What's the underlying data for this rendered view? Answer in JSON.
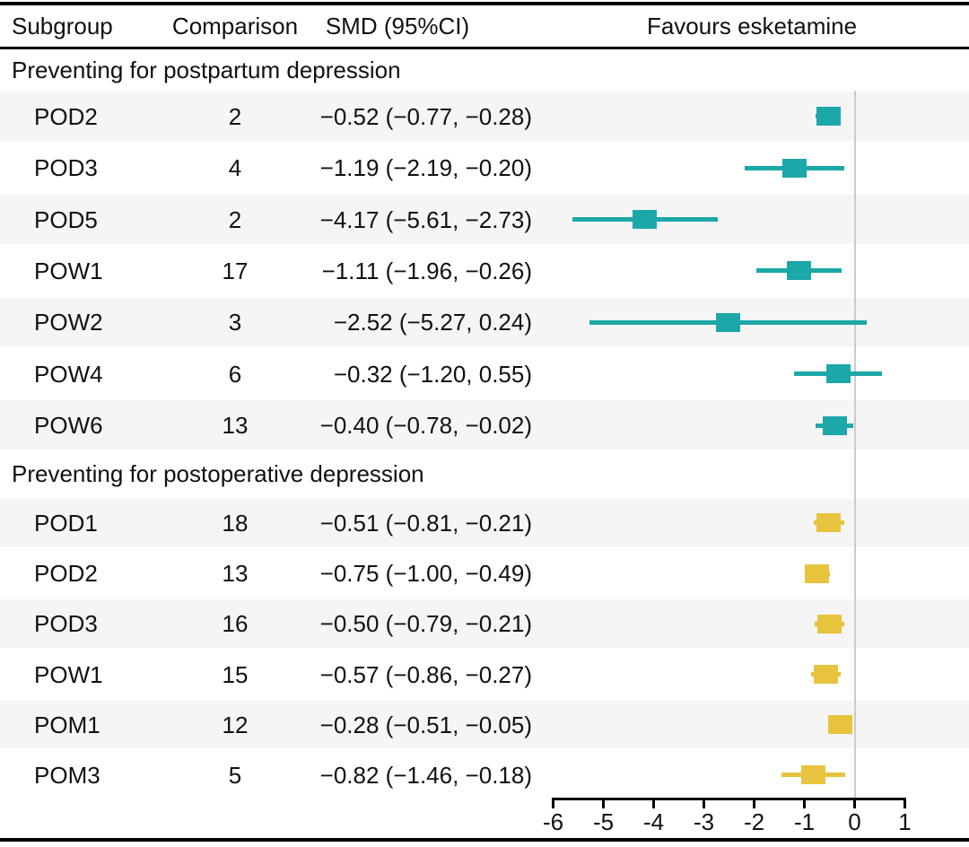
{
  "header": {
    "subgroup": "Subgroup",
    "comparison": "Comparison",
    "smd": "SMD (95%CI)",
    "favours": "Favours esketamine"
  },
  "colors": {
    "postpartum_marker": "#1CA7A8",
    "postoperative_marker": "#E8C33D",
    "row_stripe": "#F5F5F5",
    "reference_line": "#CBCBCB",
    "rule": "#000000",
    "text": "#111111"
  },
  "sections": [
    {
      "title": "Preventing for postpartum depression",
      "color": "#1CA7A8",
      "rows": [
        {
          "subgroup": "POD2",
          "comparison": "2",
          "smd_text": "−0.52 (−0.77, −0.28)",
          "est": -0.52,
          "lo": -0.77,
          "hi": -0.28
        },
        {
          "subgroup": "POD3",
          "comparison": "4",
          "smd_text": "−1.19 (−2.19, −0.20)",
          "est": -1.19,
          "lo": -2.19,
          "hi": -0.2
        },
        {
          "subgroup": "POD5",
          "comparison": "2",
          "smd_text": "−4.17 (−5.61, −2.73)",
          "est": -4.17,
          "lo": -5.61,
          "hi": -2.73
        },
        {
          "subgroup": "POW1",
          "comparison": "17",
          "smd_text": "−1.11 (−1.96, −0.26)",
          "est": -1.11,
          "lo": -1.96,
          "hi": -0.26
        },
        {
          "subgroup": "POW2",
          "comparison": "3",
          "smd_text": "−2.52 (−5.27, 0.24)",
          "est": -2.52,
          "lo": -5.27,
          "hi": 0.24
        },
        {
          "subgroup": "POW4",
          "comparison": "6",
          "smd_text": "−0.32 (−1.20, 0.55)",
          "est": -0.32,
          "lo": -1.2,
          "hi": 0.55
        },
        {
          "subgroup": "POW6",
          "comparison": "13",
          "smd_text": "−0.40 (−0.78, −0.02)",
          "est": -0.4,
          "lo": -0.78,
          "hi": -0.02
        }
      ]
    },
    {
      "title": "Preventing for postoperative depression",
      "color": "#E8C33D",
      "rows": [
        {
          "subgroup": "POD1",
          "comparison": "18",
          "smd_text": "−0.51 (−0.81, −0.21)",
          "est": -0.51,
          "lo": -0.81,
          "hi": -0.21
        },
        {
          "subgroup": "POD2",
          "comparison": "13",
          "smd_text": "−0.75 (−1.00, −0.49)",
          "est": -0.75,
          "lo": -1.0,
          "hi": -0.49
        },
        {
          "subgroup": "POD3",
          "comparison": "16",
          "smd_text": "−0.50 (−0.79, −0.21)",
          "est": -0.5,
          "lo": -0.79,
          "hi": -0.21
        },
        {
          "subgroup": "POW1",
          "comparison": "15",
          "smd_text": "−0.57 (−0.86, −0.27)",
          "est": -0.57,
          "lo": -0.86,
          "hi": -0.27
        },
        {
          "subgroup": "POM1",
          "comparison": "12",
          "smd_text": "−0.28 (−0.51, −0.05)",
          "est": -0.28,
          "lo": -0.51,
          "hi": -0.05
        },
        {
          "subgroup": "POM3",
          "comparison": "5",
          "smd_text": "−0.82 (−1.46, −0.18)",
          "est": -0.82,
          "lo": -1.46,
          "hi": -0.18
        }
      ]
    }
  ],
  "axis": {
    "tick_labels": [
      "-6",
      "-5",
      "-4",
      "-3",
      "-2",
      "-1",
      "0",
      "1"
    ],
    "tick_values": [
      -6,
      -5,
      -4,
      -3,
      -2,
      -1,
      0,
      1
    ],
    "min": -6,
    "max": 1,
    "reference_line_x": 0
  },
  "chart_data": {
    "type": "scatter",
    "variant": "forest-plot",
    "title": "",
    "xlabel": "",
    "xlim": [
      -6,
      1
    ],
    "x_ticks": [
      -6,
      -5,
      -4,
      -3,
      -2,
      -1,
      0,
      1
    ],
    "reference_line_x": 0,
    "column_headers": [
      "Subgroup",
      "Comparison",
      "SMD (95%CI)",
      "Favours esketamine"
    ],
    "series": [
      {
        "name": "Preventing for postpartum depression",
        "color": "#1CA7A8",
        "points": [
          {
            "label": "POD2",
            "comparisons": 2,
            "smd": -0.52,
            "ci_low": -0.77,
            "ci_high": -0.28
          },
          {
            "label": "POD3",
            "comparisons": 4,
            "smd": -1.19,
            "ci_low": -2.19,
            "ci_high": -0.2
          },
          {
            "label": "POD5",
            "comparisons": 2,
            "smd": -4.17,
            "ci_low": -5.61,
            "ci_high": -2.73
          },
          {
            "label": "POW1",
            "comparisons": 17,
            "smd": -1.11,
            "ci_low": -1.96,
            "ci_high": -0.26
          },
          {
            "label": "POW2",
            "comparisons": 3,
            "smd": -2.52,
            "ci_low": -5.27,
            "ci_high": 0.24
          },
          {
            "label": "POW4",
            "comparisons": 6,
            "smd": -0.32,
            "ci_low": -1.2,
            "ci_high": 0.55
          },
          {
            "label": "POW6",
            "comparisons": 13,
            "smd": -0.4,
            "ci_low": -0.78,
            "ci_high": -0.02
          }
        ]
      },
      {
        "name": "Preventing for postoperative depression",
        "color": "#E8C33D",
        "points": [
          {
            "label": "POD1",
            "comparisons": 18,
            "smd": -0.51,
            "ci_low": -0.81,
            "ci_high": -0.21
          },
          {
            "label": "POD2",
            "comparisons": 13,
            "smd": -0.75,
            "ci_low": -1.0,
            "ci_high": -0.49
          },
          {
            "label": "POD3",
            "comparisons": 16,
            "smd": -0.5,
            "ci_low": -0.79,
            "ci_high": -0.21
          },
          {
            "label": "POW1",
            "comparisons": 15,
            "smd": -0.57,
            "ci_low": -0.86,
            "ci_high": -0.27
          },
          {
            "label": "POM1",
            "comparisons": 12,
            "smd": -0.28,
            "ci_low": -0.51,
            "ci_high": -0.05
          },
          {
            "label": "POM3",
            "comparisons": 5,
            "smd": -0.82,
            "ci_low": -1.46,
            "ci_high": -0.18
          }
        ]
      }
    ]
  }
}
